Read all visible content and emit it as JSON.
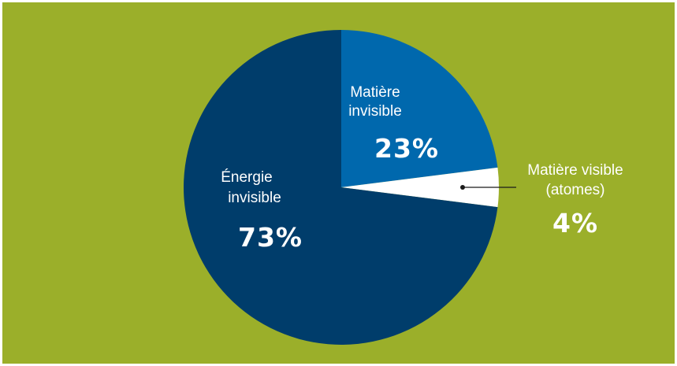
{
  "chart_data": {
    "type": "pie",
    "slices": [
      {
        "label_lines": [
          "Matière",
          "invisible"
        ],
        "value_label": "23%",
        "value": 23,
        "color": "#0068AD"
      },
      {
        "label_lines": [
          "Matière visible",
          "(atomes)"
        ],
        "value_label": "4%",
        "value": 4,
        "color": "#FFFFFF"
      },
      {
        "label_lines": [
          "Énergie",
          "invisible"
        ],
        "value_label": "73%",
        "value": 73,
        "color": "#003D6B"
      }
    ],
    "background_color": "#9BAF2A",
    "legend": "none",
    "grid": false
  }
}
